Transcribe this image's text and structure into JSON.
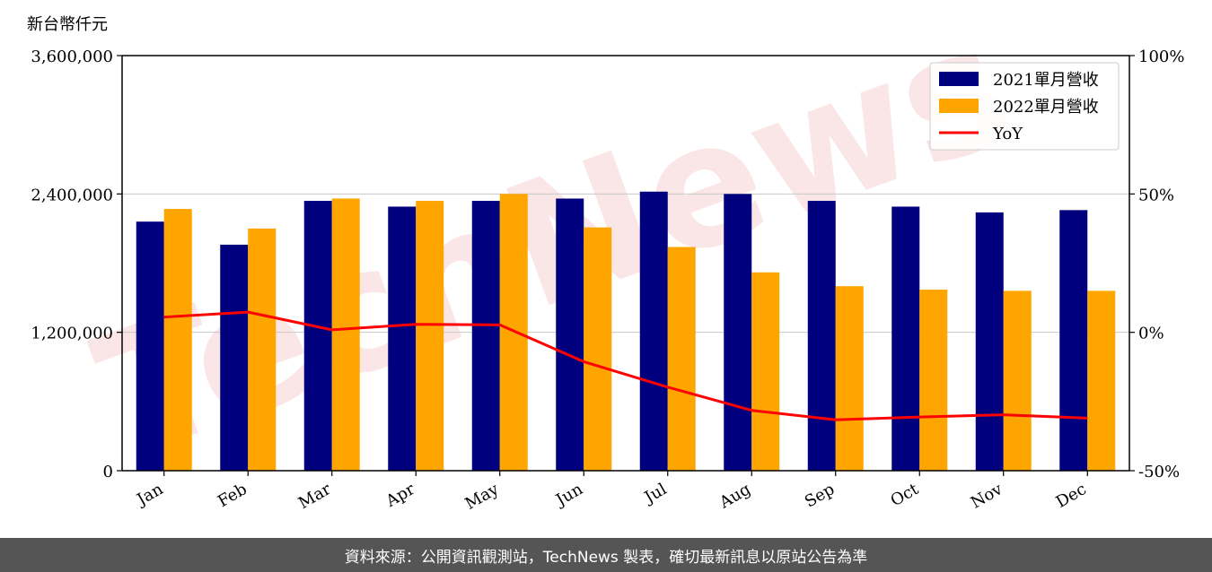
{
  "chart_data": {
    "type": "bar",
    "unit_label": "新台幣仟元",
    "categories": [
      "Jan",
      "Feb",
      "Mar",
      "Apr",
      "May",
      "Jun",
      "Jul",
      "Aug",
      "Sep",
      "Oct",
      "Nov",
      "Dec"
    ],
    "series": [
      {
        "name": "2021單月營收",
        "type": "bar",
        "axis": "left",
        "color": "#00007f",
        "values": [
          2160000,
          1960000,
          2340000,
          2290000,
          2340000,
          2360000,
          2420000,
          2400000,
          2340000,
          2290000,
          2240000,
          2260000
        ]
      },
      {
        "name": "2022單月營收",
        "type": "bar",
        "axis": "left",
        "color": "#ffa500",
        "values": [
          2270000,
          2100000,
          2360000,
          2340000,
          2400000,
          2110000,
          1940000,
          1720000,
          1600000,
          1570000,
          1560000,
          1560000
        ]
      },
      {
        "name": "YoY",
        "type": "line",
        "axis": "right",
        "color": "#ff0000",
        "values": [
          5.5,
          7.3,
          0.9,
          2.9,
          2.7,
          -10.6,
          -19.8,
          -28.2,
          -31.6,
          -30.6,
          -29.8,
          -31.0
        ]
      }
    ],
    "y_left": {
      "min": 0,
      "max": 3600000,
      "ticks": [
        0,
        1200000,
        2400000,
        3600000
      ],
      "tick_labels": [
        "0",
        "1,200,000",
        "2,400,000",
        "3,600,000"
      ]
    },
    "y_right": {
      "min": -50,
      "max": 100,
      "ticks": [
        -50,
        0,
        50,
        100
      ],
      "tick_labels": [
        "-50%",
        "0%",
        "50%",
        "100%"
      ]
    },
    "grid": "horizontal",
    "legend_position": "top-right"
  },
  "watermark_text": "TechNews",
  "footer_text": "資料來源：公開資訊觀測站，TechNews 製表，確切最新訊息以原站公告為準"
}
